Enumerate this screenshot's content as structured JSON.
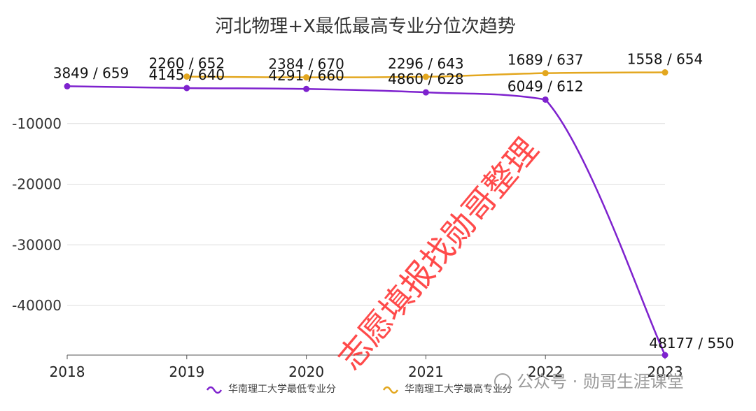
{
  "chart_data": {
    "type": "line",
    "title": "河北物理+X最低最高专业分位次趋势",
    "categories": [
      "2018",
      "2019",
      "2020",
      "2021",
      "2022",
      "2023"
    ],
    "ylim": [
      -48177,
      0
    ],
    "yticks": [
      -10000,
      -20000,
      -30000,
      -40000
    ],
    "grid": true,
    "legend_position": "bottom",
    "series": [
      {
        "name": "华南理工大学最低专业分",
        "color": "#7e22ce",
        "values": [
          -3849,
          -4145,
          -4291,
          -4860,
          -6049,
          -48177
        ],
        "labels": [
          "3849 / 659",
          "4145 / 640",
          "4291 / 660",
          "4860 / 628",
          "6049 / 612",
          "48177 / 550"
        ]
      },
      {
        "name": "华南理工大学最高专业分",
        "color": "#e3a71f",
        "values": [
          null,
          -2260,
          -2384,
          -2296,
          -1689,
          -1558
        ],
        "labels": [
          "",
          "2260 / 652",
          "2384 / 670",
          "2296 / 643",
          "1689 / 637",
          "1558 / 654"
        ]
      }
    ]
  },
  "watermark": {
    "text": "志愿填报找勋哥整理",
    "account": "公众号 · 勋哥生涯课堂"
  }
}
